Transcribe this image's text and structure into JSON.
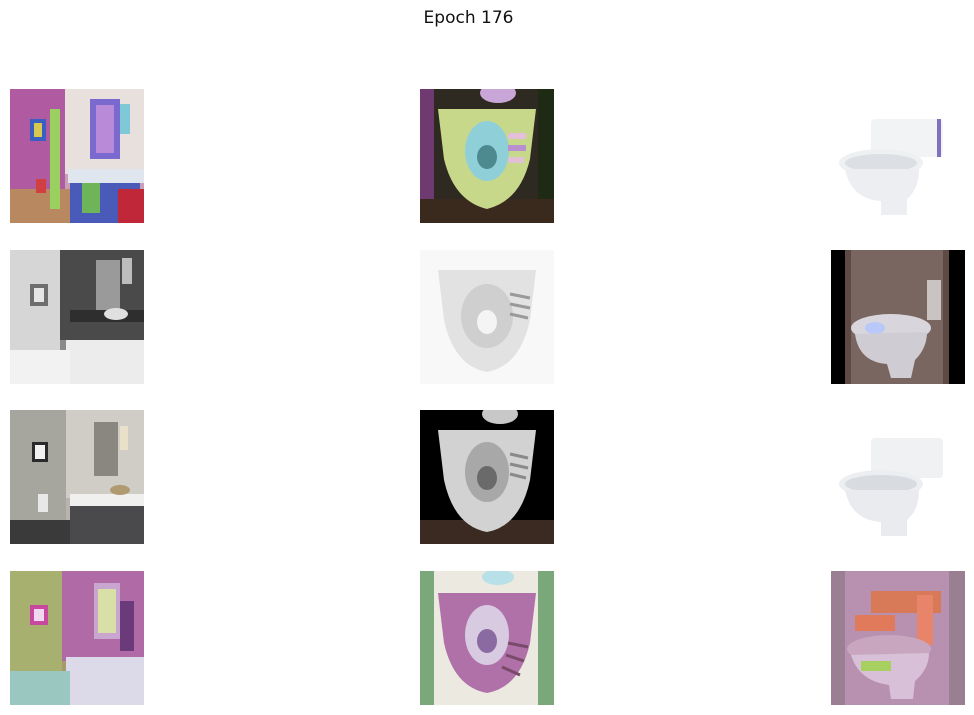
{
  "figure": {
    "title": "Epoch 176",
    "rows": [
      [
        {
          "subject": "bathroom-segmentation-colored"
        },
        {
          "subject": "squat-toilet-segmentation-colored"
        },
        {
          "subject": "western-toilet-white"
        }
      ],
      [
        {
          "subject": "bathroom-grayscale"
        },
        {
          "subject": "squat-toilet-light"
        },
        {
          "subject": "western-toilet-dark"
        }
      ],
      [
        {
          "subject": "bathroom-photo"
        },
        {
          "subject": "squat-toilet-dark-bg"
        },
        {
          "subject": "western-toilet-white"
        }
      ],
      [
        {
          "subject": "bathroom-generated"
        },
        {
          "subject": "squat-toilet-generated"
        },
        {
          "subject": "western-toilet-generated"
        }
      ]
    ]
  }
}
